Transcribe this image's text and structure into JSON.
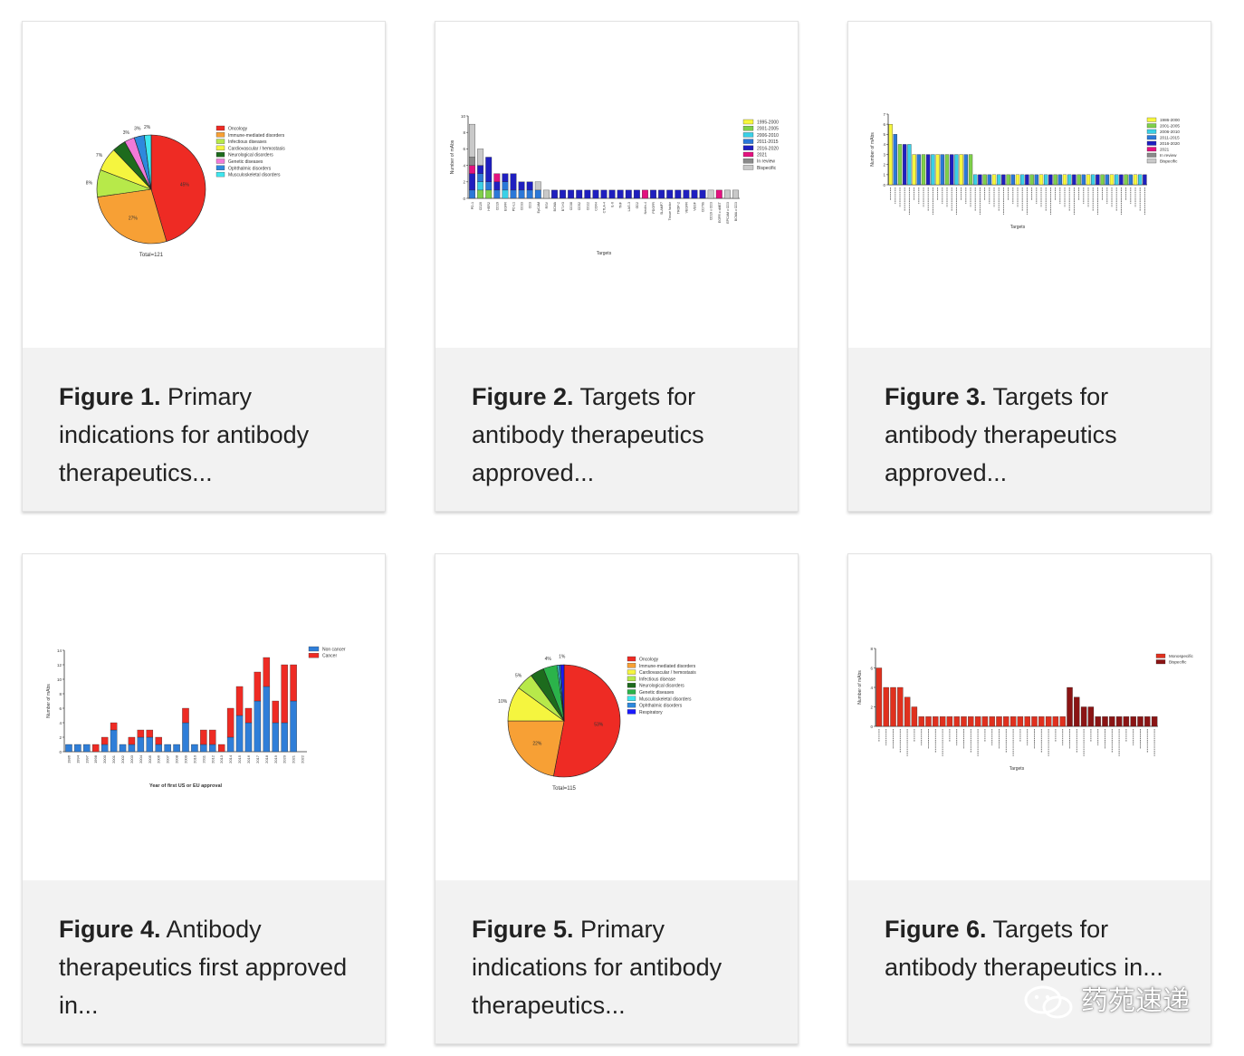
{
  "figures": [
    {
      "label": "Figure 1.",
      "caption": " Primary indications for antibody therapeutics...",
      "chart_data": {
        "type": "pie",
        "labels": [
          "Oncology",
          "Immune-mediated disorders",
          "Infectious diseases",
          "Cardiovascular / hemostasis",
          "Neurological disorders",
          "Genetic diseases",
          "Ophthalmic disorders",
          "Musculoskeletal disorders"
        ],
        "values": [
          45,
          27,
          8,
          7,
          4,
          3,
          3,
          2
        ],
        "value_labels": [
          "45%",
          "27%",
          "8%",
          "7%",
          "",
          "3%",
          "3%",
          "2%"
        ],
        "colors": [
          "#ee2b24",
          "#f7a035",
          "#b7e94a",
          "#f5f53f",
          "#1d6b1d",
          "#f07ad8",
          "#2e88dd",
          "#3fe6ee"
        ],
        "total_label": "Total=121",
        "legend_position": "right"
      }
    },
    {
      "label": "Figure 2.",
      "caption": " Targets for antibody therapeutics approved...",
      "chart_data": {
        "type": "bar",
        "ylabel": "Number of mAbs",
        "xlabel": "Targets",
        "ylim": [
          0,
          10
        ],
        "yticks": [
          0,
          2,
          4,
          6,
          8,
          10
        ],
        "categories": [
          "PD-1",
          "CD20",
          "HER2",
          "CD19",
          "EGFR",
          "PD-L1",
          "CD33",
          "CD3",
          "EpCAM",
          "RSV",
          "BCMA",
          "B7-H3",
          "CD38",
          "CD52",
          "CD22",
          "CCR4",
          "CTLA-4",
          "IL-6",
          "TNF",
          "LAG-3",
          "GD2",
          "Nectin-4",
          "PDGFR",
          "SLAMF7",
          "Tissue factor",
          "TROP-2",
          "VEGFR",
          "VEGF",
          "CD79b",
          "CD19 x CD3",
          "EGFR x cMET",
          "EPCAM x CD3",
          "BCMA x CD3"
        ],
        "stack_colors": [
          "#f7f73e",
          "#7fd04a",
          "#3ad0e6",
          "#2b78d8",
          "#1f1fbf",
          "#e3127f",
          "#8a8a8a",
          "#c9c9c9"
        ],
        "series": [
          {
            "name": "1995-2000",
            "values": [
              0,
              0,
              0,
              0,
              0,
              0,
              0,
              0,
              0,
              0,
              0,
              0,
              0,
              0,
              0,
              0,
              0,
              0,
              0,
              0,
              0,
              0,
              0,
              0,
              0,
              0,
              0,
              0,
              0,
              0,
              0,
              0,
              0
            ]
          },
          {
            "name": "2001-2005",
            "values": [
              0,
              1,
              1,
              0,
              0,
              0,
              0,
              0,
              0,
              0,
              0,
              0,
              0,
              0,
              0,
              0,
              0,
              0,
              0,
              0,
              0,
              0,
              0,
              0,
              0,
              0,
              0,
              0,
              0,
              0,
              0,
              0,
              0
            ]
          },
          {
            "name": "2006-2010",
            "values": [
              0,
              1,
              0,
              0,
              1,
              0,
              0,
              0,
              0,
              0,
              0,
              0,
              0,
              0,
              0,
              0,
              0,
              0,
              0,
              0,
              0,
              0,
              0,
              0,
              0,
              0,
              0,
              0,
              0,
              0,
              0,
              0,
              0
            ]
          },
          {
            "name": "2011-2015",
            "values": [
              1,
              1,
              1,
              1,
              1,
              1,
              1,
              1,
              1,
              0,
              0,
              0,
              0,
              0,
              0,
              0,
              0,
              0,
              0,
              0,
              0,
              0,
              0,
              0,
              0,
              0,
              0,
              0,
              0,
              0,
              0,
              0,
              0
            ]
          },
          {
            "name": "2016-2020",
            "values": [
              2,
              1,
              3,
              1,
              1,
              2,
              1,
              1,
              0,
              0,
              1,
              1,
              1,
              1,
              1,
              1,
              1,
              1,
              1,
              1,
              1,
              0,
              1,
              1,
              1,
              1,
              1,
              1,
              1,
              0,
              0,
              0,
              0
            ]
          },
          {
            "name": "2021",
            "values": [
              1,
              0,
              0,
              1,
              0,
              0,
              0,
              0,
              0,
              0,
              0,
              0,
              0,
              0,
              0,
              0,
              0,
              0,
              0,
              0,
              0,
              1,
              0,
              0,
              0,
              0,
              0,
              0,
              0,
              0,
              1,
              0,
              0
            ]
          },
          {
            "name": "In review",
            "values": [
              1,
              0,
              0,
              0,
              0,
              0,
              0,
              0,
              0,
              0,
              0,
              0,
              0,
              0,
              0,
              0,
              0,
              0,
              0,
              0,
              0,
              0,
              0,
              0,
              0,
              0,
              0,
              0,
              0,
              0,
              0,
              0,
              0
            ]
          },
          {
            "name": "Bispecific",
            "values": [
              4,
              2,
              0,
              0,
              0,
              0,
              0,
              0,
              1,
              1,
              0,
              0,
              0,
              0,
              0,
              0,
              0,
              0,
              0,
              0,
              0,
              0,
              0,
              0,
              0,
              0,
              0,
              0,
              0,
              1,
              0,
              1,
              1
            ]
          }
        ],
        "legend_position": "right"
      }
    },
    {
      "label": "Figure 3.",
      "caption": " Targets for antibody therapeutics approved...",
      "chart_data": {
        "type": "bar",
        "ylabel": "Number of mAbs",
        "xlabel": "Targets",
        "ylim": [
          0,
          7
        ],
        "yticks": [
          0,
          1,
          2,
          3,
          4,
          5,
          6,
          7
        ],
        "bar_count": 55,
        "values": [
          6,
          5,
          4,
          4,
          4,
          3,
          3,
          3,
          3,
          3,
          3,
          3,
          3,
          3,
          3,
          3,
          3,
          3,
          1,
          1,
          1,
          1,
          1,
          1,
          1,
          1,
          1,
          1,
          1,
          1,
          1,
          1,
          1,
          1,
          1,
          1,
          1,
          1,
          1,
          1,
          1,
          1,
          1,
          1,
          1,
          1,
          1,
          1,
          1,
          1,
          1,
          1,
          1,
          1,
          1
        ],
        "stack_colors": [
          "#f7f73e",
          "#7fd04a",
          "#3ad0e6",
          "#2b78d8",
          "#1f1fbf",
          "#e3127f",
          "#8a8a8a",
          "#c9c9c9"
        ],
        "series": [
          {
            "name": "1986-2000"
          },
          {
            "name": "2001-2005"
          },
          {
            "name": "2006-2010"
          },
          {
            "name": "2011-2015"
          },
          {
            "name": "2016-2020"
          },
          {
            "name": "2021"
          },
          {
            "name": "In review"
          },
          {
            "name": "Bispecific"
          }
        ],
        "legend_position": "right"
      }
    },
    {
      "label": "Figure 4.",
      "caption": " Antibody therapeutics first approved in...",
      "chart_data": {
        "type": "bar",
        "ylabel": "Number of mAbs",
        "xlabel": "Year of first US or EU approval",
        "ylim": [
          0,
          14
        ],
        "yticks": [
          0,
          2,
          4,
          6,
          8,
          10,
          12,
          14
        ],
        "categories": [
          "1986",
          "1994",
          "1997",
          "1998",
          "2000",
          "2001",
          "2002",
          "2003",
          "2004",
          "2005",
          "2006",
          "2007",
          "2008",
          "2009",
          "2010",
          "2011",
          "2012",
          "2013",
          "2014",
          "2015",
          "2016",
          "2017",
          "2018",
          "2019",
          "2020",
          "2021",
          "2022"
        ],
        "series": [
          {
            "name": "Non cancer",
            "color": "#2f7ed8",
            "values": [
              1,
              1,
              1,
              0,
              1,
              3,
              1,
              1,
              2,
              2,
              1,
              1,
              1,
              4,
              1,
              1,
              1,
              0,
              2,
              5,
              4,
              7,
              9,
              4,
              4,
              7,
              0
            ]
          },
          {
            "name": "Cancer",
            "color": "#ee2b24",
            "values": [
              0,
              0,
              0,
              1,
              1,
              1,
              0,
              1,
              1,
              1,
              1,
              0,
              0,
              2,
              0,
              2,
              2,
              1,
              4,
              4,
              2,
              4,
              4,
              3,
              8,
              5,
              0
            ]
          }
        ],
        "legend_position": "top-right"
      }
    },
    {
      "label": "Figure 5.",
      "caption": " Primary indications for antibody therapeutics...",
      "chart_data": {
        "type": "pie",
        "labels": [
          "Oncology",
          "Immune-mediated disorders",
          "Cardiovascular / hemostasis",
          "Infectious disease",
          "Neurological disorders",
          "Genetic diseases",
          "Musculoskeletal disorders",
          "Ophthalmic disorders",
          "Respiratory"
        ],
        "values": [
          53,
          22,
          10,
          5,
          4,
          4,
          0.5,
          0.5,
          1
        ],
        "value_labels": [
          "53%",
          "22%",
          "10%",
          "5%",
          "",
          "4%",
          "",
          "",
          "1%"
        ],
        "colors": [
          "#ee2b24",
          "#f7a035",
          "#f5f53f",
          "#b7e94a",
          "#1d6b1d",
          "#2bb34a",
          "#3fe6ee",
          "#2e88dd",
          "#1a1aff"
        ],
        "total_label": "Total=115",
        "legend_position": "right"
      }
    },
    {
      "label": "Figure 6.",
      "caption": " Targets for antibody therapeutics in...",
      "chart_data": {
        "type": "bar",
        "ylabel": "Number of mAbs",
        "xlabel": "Targets",
        "ylim": [
          0,
          8
        ],
        "yticks": [
          0,
          2,
          4,
          6,
          8
        ],
        "bar_count": 40,
        "values": [
          6,
          4,
          4,
          4,
          3,
          2,
          1,
          1,
          1,
          1,
          1,
          1,
          1,
          1,
          1,
          1,
          1,
          1,
          1,
          1,
          1,
          1,
          1,
          1,
          1,
          1,
          1,
          4,
          3,
          2,
          2,
          1,
          1,
          1,
          1,
          1,
          1,
          1,
          1,
          1
        ],
        "bispecific_from_index": 27,
        "series": [
          {
            "name": "Monospecific",
            "color": "#e0301e"
          },
          {
            "name": "Bispecific",
            "color": "#8b1414"
          }
        ],
        "legend_position": "top-right"
      }
    }
  ],
  "watermark": {
    "text": "药苑速递",
    "icon": "wechat-icon"
  }
}
